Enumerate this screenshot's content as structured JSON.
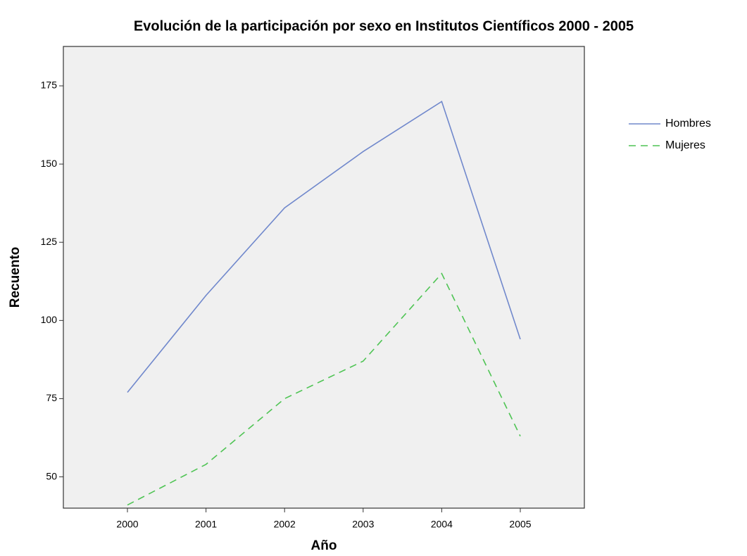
{
  "chart_data": {
    "type": "line",
    "title": "Evolución de la participación por sexo en Institutos Científicos 2000 - 2005",
    "x_label": "Año",
    "y_label": "Recuento",
    "categories": [
      "2000",
      "2001",
      "2002",
      "2003",
      "2004",
      "2005"
    ],
    "series": [
      {
        "name": "Hombres",
        "color": "#7088cc",
        "dash": "solid",
        "values": [
          77,
          108,
          136,
          154,
          170,
          94
        ]
      },
      {
        "name": "Mujeres",
        "color": "#4fc454",
        "dash": "dashed",
        "values": [
          41,
          54,
          75,
          87,
          115,
          63
        ]
      }
    ],
    "ylim": [
      40,
      187.6
    ],
    "yticks": [
      50,
      75,
      100,
      125,
      150,
      175
    ],
    "legend": "right"
  }
}
